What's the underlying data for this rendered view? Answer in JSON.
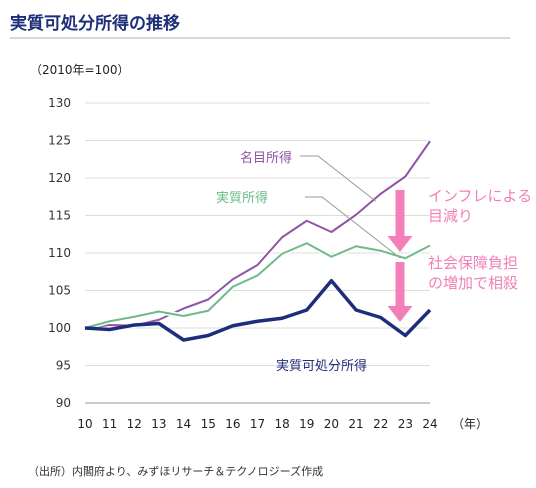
{
  "header": {
    "title": "実質可処分所得の推移",
    "accent_color": "#1f2e7a"
  },
  "chart_data": {
    "type": "line",
    "title": "実質可処分所得の推移",
    "unit_label": "（2010年=100）",
    "x_unit": "（年）",
    "x": [
      "10",
      "11",
      "12",
      "13",
      "14",
      "15",
      "16",
      "17",
      "18",
      "19",
      "20",
      "21",
      "22",
      "23",
      "24"
    ],
    "ylim": [
      90,
      130
    ],
    "yticks": [
      90,
      95,
      100,
      105,
      110,
      115,
      120,
      125,
      130
    ],
    "grid": true,
    "series": [
      {
        "name": "名目所得",
        "color": "#8e55a8",
        "values": [
          100,
          100.4,
          100.3,
          101.1,
          102.6,
          103.8,
          106.5,
          108.4,
          112.1,
          114.3,
          112.8,
          115.1,
          117.9,
          120.2,
          124.9
        ]
      },
      {
        "name": "実質所得",
        "color": "#6dbb8a",
        "values": [
          100,
          100.9,
          101.5,
          102.2,
          101.6,
          102.3,
          105.5,
          107.0,
          109.9,
          111.3,
          109.5,
          110.9,
          110.3,
          109.3,
          111.0
        ]
      },
      {
        "name": "実質可処分所得",
        "color": "#1f2e7a",
        "values": [
          100,
          99.8,
          100.4,
          100.6,
          98.4,
          99.0,
          100.3,
          100.9,
          101.3,
          102.4,
          106.3,
          102.4,
          101.4,
          99.0,
          102.4
        ]
      }
    ],
    "annotations": [
      {
        "text_lines": [
          "インフレによる",
          "目減り"
        ],
        "color": "#f27fb8"
      },
      {
        "text_lines": [
          "社会保障負担",
          "の増加で相殺"
        ],
        "color": "#f27fb8"
      }
    ]
  },
  "footer": {
    "source": "（出所）内閣府より、みずほリサーチ＆テクノロジーズ作成"
  }
}
